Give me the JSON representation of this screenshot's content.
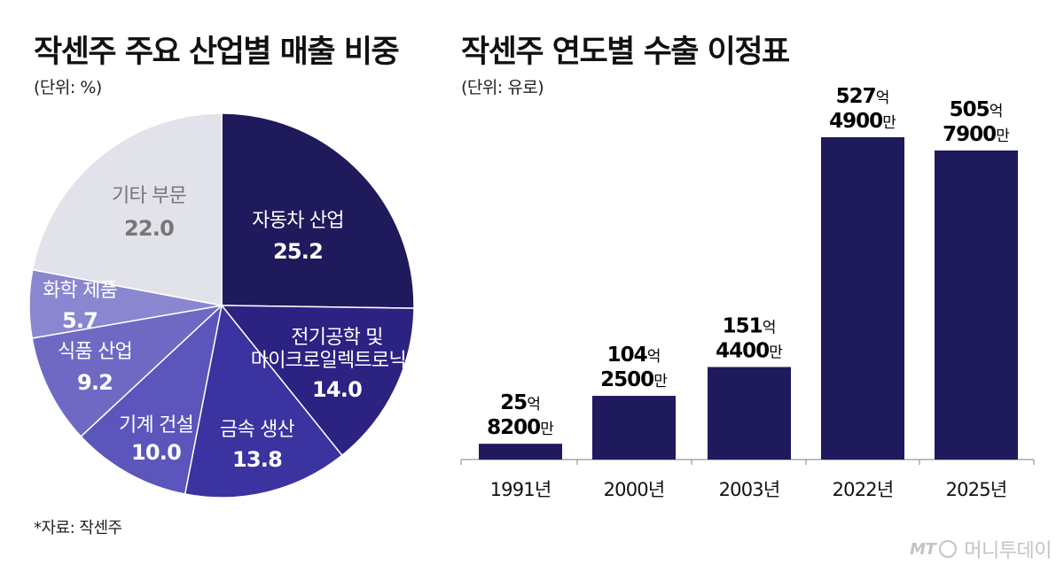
{
  "charts": {
    "pie": {
      "title": "작센주 주요 산업별 매출 비중",
      "unit": "(단위: %)"
    },
    "bar": {
      "title": "작센주 연도별 수출 이정표",
      "unit": "(단위: 유로)"
    }
  },
  "chart_data": [
    {
      "type": "pie",
      "title": "작센주 주요 산업별 매출 비중",
      "unit": "(단위: %)",
      "slices": [
        {
          "label": "자동차 산업",
          "value": 25.2,
          "value_label": "25.2",
          "color": "#1f1a5c",
          "text_color": "#ffffff"
        },
        {
          "label": "전기공학 및 마이크로일렉트로닉스",
          "label_lines": [
            "전기공학 및",
            "마이크로일렉트로닉스"
          ],
          "value": 14.0,
          "value_label": "14.0",
          "color": "#2b2282",
          "text_color": "#ffffff"
        },
        {
          "label": "금속 생산",
          "value": 13.8,
          "value_label": "13.8",
          "color": "#3b33a0",
          "text_color": "#ffffff"
        },
        {
          "label": "기계 건설",
          "value": 10.0,
          "value_label": "10.0",
          "color": "#5c55bb",
          "text_color": "#ffffff"
        },
        {
          "label": "식품 산업",
          "value": 9.2,
          "value_label": "9.2",
          "color": "#6f69c4",
          "text_color": "#ffffff"
        },
        {
          "label": "화학 제품",
          "value": 5.7,
          "value_label": "5.7",
          "color": "#8a86cf",
          "text_color": "#ffffff"
        },
        {
          "label": "기타 부문",
          "value": 22.0,
          "value_label": "22.0",
          "color": "#e2e2ea",
          "text_color": "#777777"
        }
      ]
    },
    {
      "type": "bar",
      "title": "작센주 연도별 수출 이정표",
      "unit": "(단위: 유로)",
      "categories": [
        "1991년",
        "2000년",
        "2003년",
        "2022년",
        "2025년"
      ],
      "values": [
        2582000000,
        10425000000,
        15144000000,
        52749000000,
        50579000000
      ],
      "value_labels": [
        {
          "num1": "25",
          "unit1": "억",
          "num2": "8200",
          "unit2": "만"
        },
        {
          "num1": "104",
          "unit1": "억",
          "num2": "2500",
          "unit2": "만"
        },
        {
          "num1": "151",
          "unit1": "억",
          "num2": "4400",
          "unit2": "만"
        },
        {
          "num1": "527",
          "unit1": "억",
          "num2": "4900",
          "unit2": "만"
        },
        {
          "num1": "505",
          "unit1": "억",
          "num2": "7900",
          "unit2": "만"
        }
      ],
      "bar_color": "#1f1a5c",
      "ylim": [
        0,
        52749000000
      ]
    }
  ],
  "source": "*자료: 작센주",
  "logo": {
    "mark": "MT",
    "name": "머니투데이"
  }
}
